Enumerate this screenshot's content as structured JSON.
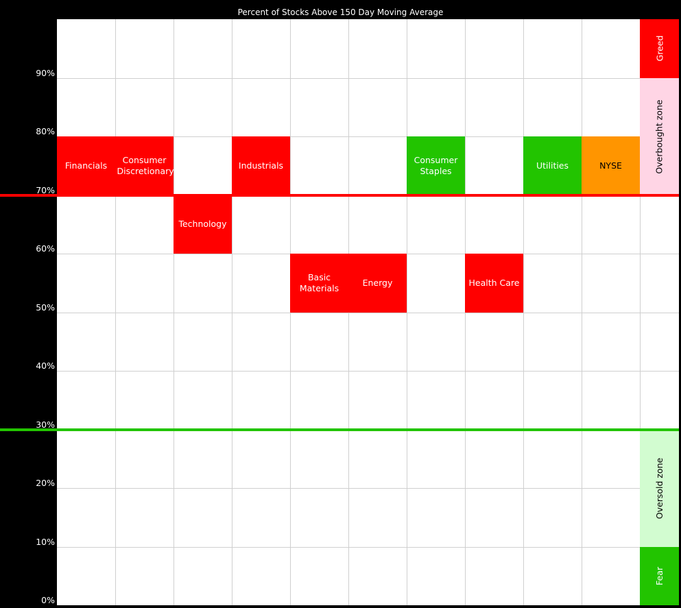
{
  "chart_data": {
    "type": "heatmap",
    "title": "Percent of Stocks Above 150 Day Moving Average",
    "ylim": [
      0,
      100
    ],
    "yticks": [
      "0%",
      "10%",
      "20%",
      "30%",
      "40%",
      "50%",
      "60%",
      "70%",
      "80%",
      "90%"
    ],
    "grid": true,
    "categories": [
      "Financials",
      "Consumer Discretionary",
      "Technology",
      "Industrials",
      "Basic Materials",
      "Energy",
      "Consumer Staples",
      "Health Care",
      "Utilities",
      "NYSE"
    ],
    "series": [
      {
        "category": "Financials",
        "label": "Financials",
        "range": [
          70,
          80
        ],
        "color": "#ff0000",
        "text_color": "#ffffff"
      },
      {
        "category": "Consumer Discretionary",
        "label": "Consumer Discretionary",
        "range": [
          70,
          80
        ],
        "color": "#ff0000",
        "text_color": "#ffffff"
      },
      {
        "category": "Technology",
        "label": "Technology",
        "range": [
          60,
          70
        ],
        "color": "#ff0000",
        "text_color": "#ffffff"
      },
      {
        "category": "Industrials",
        "label": "Industrials",
        "range": [
          70,
          80
        ],
        "color": "#ff0000",
        "text_color": "#ffffff"
      },
      {
        "category": "Basic Materials",
        "label": "Basic Materials",
        "range": [
          50,
          60
        ],
        "color": "#ff0000",
        "text_color": "#ffffff"
      },
      {
        "category": "Energy",
        "label": "Energy",
        "range": [
          50,
          60
        ],
        "color": "#ff0000",
        "text_color": "#ffffff"
      },
      {
        "category": "Consumer Staples",
        "label": "Consumer Staples",
        "range": [
          70,
          80
        ],
        "color": "#22c400",
        "text_color": "#ffffff"
      },
      {
        "category": "Health Care",
        "label": "Health Care",
        "range": [
          50,
          60
        ],
        "color": "#ff0000",
        "text_color": "#ffffff"
      },
      {
        "category": "Utilities",
        "label": "Utilities",
        "range": [
          70,
          80
        ],
        "color": "#22c400",
        "text_color": "#ffffff"
      },
      {
        "category": "NYSE",
        "label": "NYSE",
        "range": [
          70,
          80
        ],
        "color": "#ff9500",
        "text_color": "#000000"
      }
    ],
    "zones": [
      {
        "label": "Greed",
        "range": [
          90,
          100
        ],
        "color": "#ff0000",
        "text_color": "#ffffff"
      },
      {
        "label": "Overbought zone",
        "range": [
          70,
          90
        ],
        "color": "#ffd5e5",
        "text_color": "#000000"
      },
      {
        "label": "Oversold zone",
        "range": [
          10,
          30
        ],
        "color": "#d2fcd0",
        "text_color": "#000000"
      },
      {
        "label": "Fear",
        "range": [
          0,
          10
        ],
        "color": "#22c400",
        "text_color": "#ffffff"
      }
    ],
    "thresholds": [
      {
        "value": 70,
        "color": "#ff0000"
      },
      {
        "value": 30,
        "color": "#22c400"
      }
    ]
  }
}
